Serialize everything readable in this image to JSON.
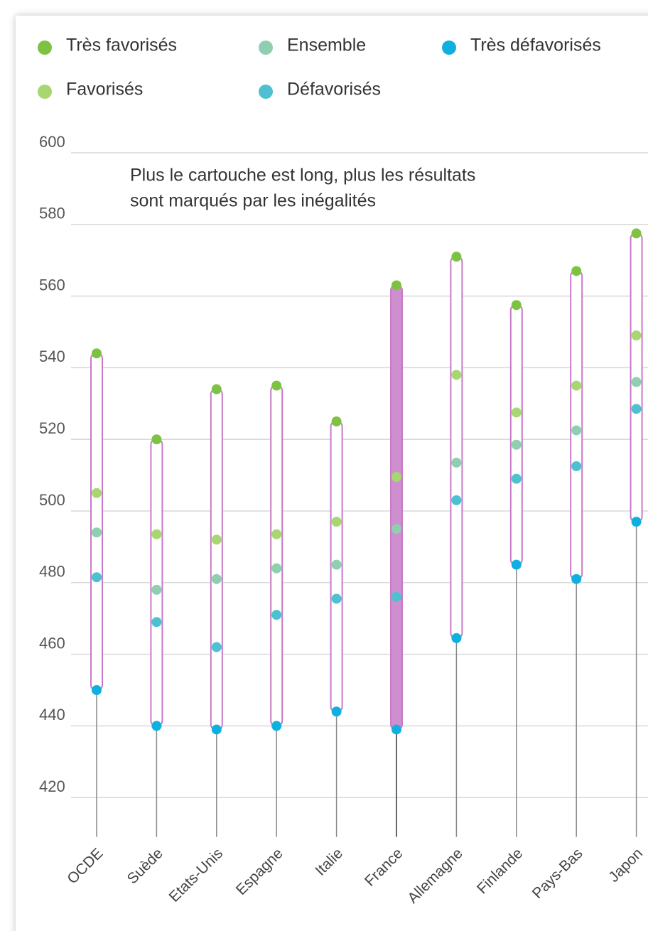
{
  "chart_data": {
    "type": "range-dot",
    "annotation": [
      "Plus le cartouche est long, plus les résultats",
      "sont marqués par les inégalités"
    ],
    "categories": [
      "OCDE",
      "Suède",
      "Etats-Unis",
      "Espagne",
      "Italie",
      "France",
      "Allemagne",
      "Finlande",
      "Pays-Bas",
      "Japon"
    ],
    "series": [
      {
        "name": "Très favorisés",
        "color": "#7dc242",
        "values": [
          544,
          520,
          534,
          535,
          525,
          563,
          571,
          557.5,
          567,
          577.5
        ]
      },
      {
        "name": "Favorisés",
        "color": "#a8d672",
        "values": [
          505,
          493.5,
          492,
          493.5,
          497,
          509.5,
          538,
          527.5,
          535,
          549
        ]
      },
      {
        "name": "Ensemble",
        "color": "#8fcfb0",
        "values": [
          494,
          478,
          481,
          484,
          485,
          495,
          513.5,
          518.5,
          522.5,
          536
        ]
      },
      {
        "name": "Défavorisés",
        "color": "#4fc0d0",
        "values": [
          481.5,
          469,
          462,
          471,
          475.5,
          476,
          503,
          509,
          512.5,
          528.5
        ]
      },
      {
        "name": "Très défavorisés",
        "color": "#0fb0e0",
        "values": [
          450,
          440,
          439,
          440,
          444,
          439,
          464.5,
          485,
          481,
          497
        ]
      }
    ],
    "ylim": [
      409,
      600
    ],
    "yticks": [
      420,
      440,
      460,
      480,
      500,
      520,
      540,
      560,
      580,
      600
    ],
    "grid": true,
    "range_color": "#c77bc7",
    "highlight": "France",
    "highlight_color": "#cf8fcf"
  }
}
